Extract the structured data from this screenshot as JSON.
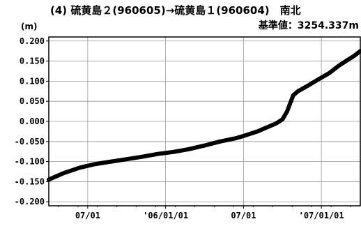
{
  "chart_data": {
    "type": "line",
    "title": "(4) 硫黄島２(960605)→硫黄島１(960604)　南北",
    "subtitle": "基準値：3254.337m",
    "ylabel": "(m)",
    "xlabel": "",
    "ylim": [
      -0.21,
      0.21
    ],
    "y_ticks": [
      0.2,
      0.15,
      0.1,
      0.05,
      0.0,
      -0.05,
      -0.1,
      -0.15,
      -0.2
    ],
    "y_tick_labels": [
      "0.200",
      "0.150",
      "0.100",
      "0.050",
      "0.000",
      "-0.050",
      "-0.100",
      "-0.150",
      "-0.200"
    ],
    "x_tick_labels": [
      "07/01",
      "'06/01/01",
      "07/01",
      "'07/01/01"
    ],
    "grid": true,
    "series_color": "#000000",
    "series": [
      {
        "points": [
          [
            0.0,
            -0.145
          ],
          [
            0.02,
            -0.138
          ],
          [
            0.05,
            -0.128
          ],
          [
            0.1,
            -0.115
          ],
          [
            0.15,
            -0.106
          ],
          [
            0.2,
            -0.1
          ],
          [
            0.25,
            -0.094
          ],
          [
            0.3,
            -0.088
          ],
          [
            0.35,
            -0.081
          ],
          [
            0.4,
            -0.076
          ],
          [
            0.45,
            -0.069
          ],
          [
            0.5,
            -0.06
          ],
          [
            0.55,
            -0.05
          ],
          [
            0.6,
            -0.042
          ],
          [
            0.63,
            -0.035
          ],
          [
            0.67,
            -0.025
          ],
          [
            0.7,
            -0.015
          ],
          [
            0.73,
            -0.005
          ],
          [
            0.75,
            0.005
          ],
          [
            0.765,
            0.025
          ],
          [
            0.775,
            0.045
          ],
          [
            0.785,
            0.065
          ],
          [
            0.8,
            0.075
          ],
          [
            0.83,
            0.088
          ],
          [
            0.86,
            0.102
          ],
          [
            0.9,
            0.12
          ],
          [
            0.93,
            0.138
          ],
          [
            0.96,
            0.153
          ],
          [
            0.98,
            0.163
          ],
          [
            1.0,
            0.175
          ]
        ]
      }
    ]
  }
}
